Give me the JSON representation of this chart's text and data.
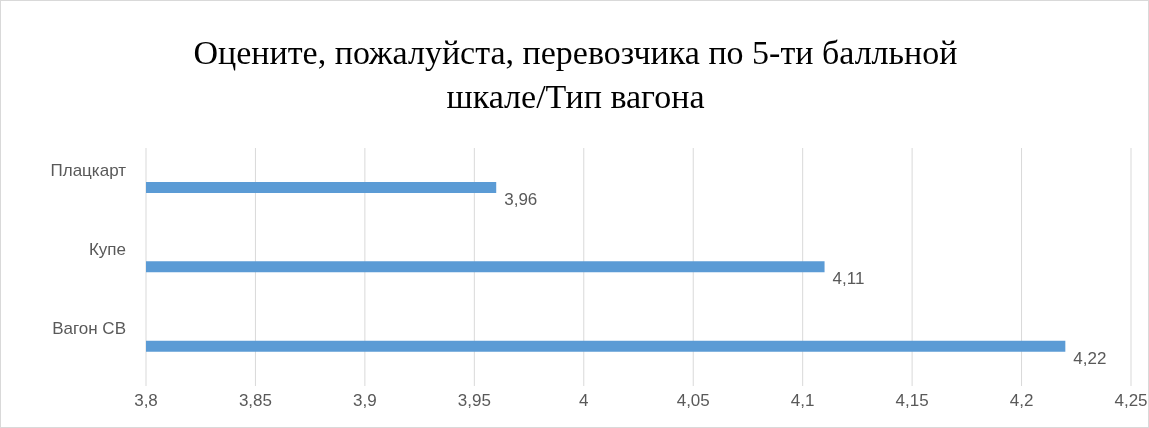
{
  "chart_data": {
    "type": "bar",
    "orientation": "horizontal",
    "title": "Оцените, пожалуйста, перевозчика по 5-ти балльной шкале/Тип вагона",
    "categories": [
      "Плацкарт",
      "Купе",
      "Вагон СВ"
    ],
    "values": [
      3.96,
      4.11,
      4.22
    ],
    "value_labels": [
      "3,96",
      "4,11",
      "4,22"
    ],
    "color": "#5b9bd5",
    "xlim": [
      3.8,
      4.25
    ],
    "xticks": [
      {
        "value": 3.8,
        "label": "3,8"
      },
      {
        "value": 3.85,
        "label": "3,85"
      },
      {
        "value": 3.9,
        "label": "3,9"
      },
      {
        "value": 3.95,
        "label": "3,95"
      },
      {
        "value": 4,
        "label": "4"
      },
      {
        "value": 4.05,
        "label": "4,05"
      },
      {
        "value": 4.1,
        "label": "4,1"
      },
      {
        "value": 4.15,
        "label": "4,15"
      },
      {
        "value": 4.2,
        "label": "4,2"
      },
      {
        "value": 4.25,
        "label": "4,25"
      }
    ],
    "grid": "x"
  }
}
